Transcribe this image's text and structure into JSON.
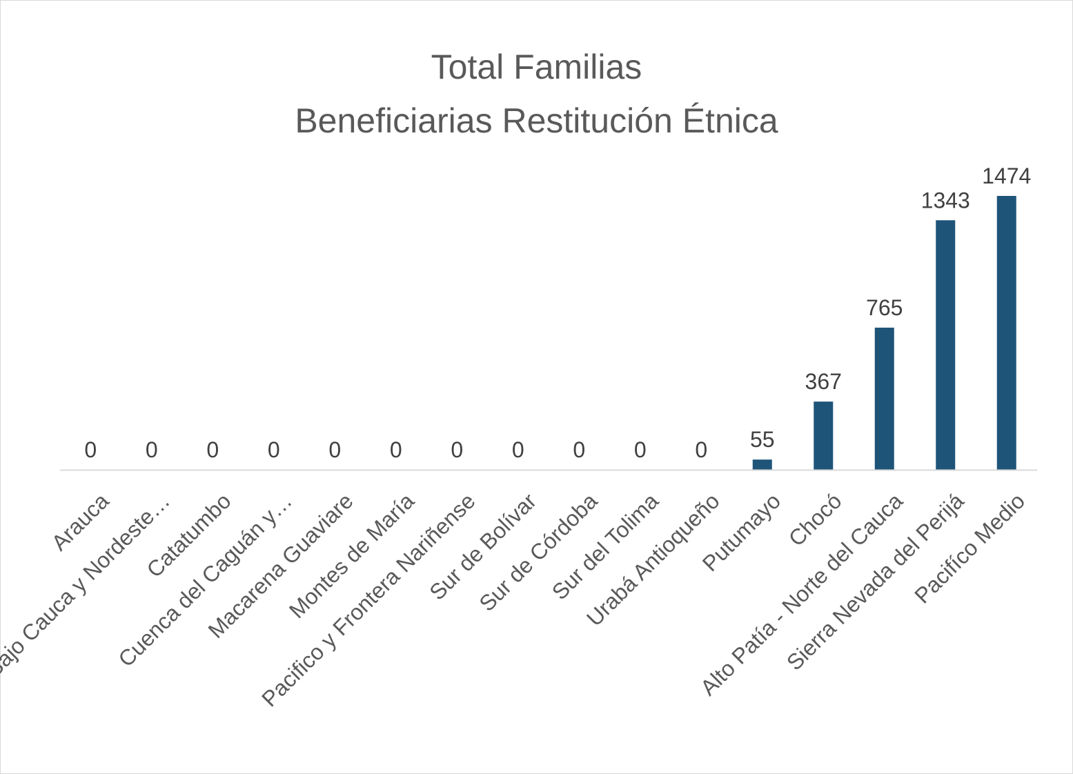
{
  "chart_data": {
    "type": "bar",
    "title_line1": "Total Familias",
    "title_line2": "Beneficiarias Restitución Étnica",
    "xlabel": "",
    "ylabel": "",
    "categories": [
      "Arauca",
      "Bajo Cauca y Nordeste…",
      "Catatumbo",
      "Cuenca del Caguán y…",
      "Macarena Guaviare",
      "Montes de María",
      "Pacifico y Frontera Nariñense",
      "Sur de Bolívar",
      "Sur de Córdoba",
      "Sur del Tolima",
      "Urabá Antioqueño",
      "Putumayo",
      "Chocó",
      "Alto Patía - Norte del Cauca",
      "Sierra Nevada del Perijá",
      "Pacifíco Medio"
    ],
    "series": [
      {
        "values": [
          0,
          0,
          0,
          0,
          0,
          0,
          0,
          0,
          0,
          0,
          0,
          55,
          367,
          765,
          1343,
          1474
        ],
        "labels": [
          "0",
          "0",
          "0",
          "0",
          "0",
          "0",
          "0",
          "0",
          "0",
          "0",
          "0",
          "55",
          "367",
          "765",
          "1343",
          "1474"
        ],
        "color": "#1f5479"
      }
    ],
    "ylim": [
      0,
      1600
    ],
    "grid": false,
    "legend": "none",
    "axis_color": "#d9d9d9"
  }
}
